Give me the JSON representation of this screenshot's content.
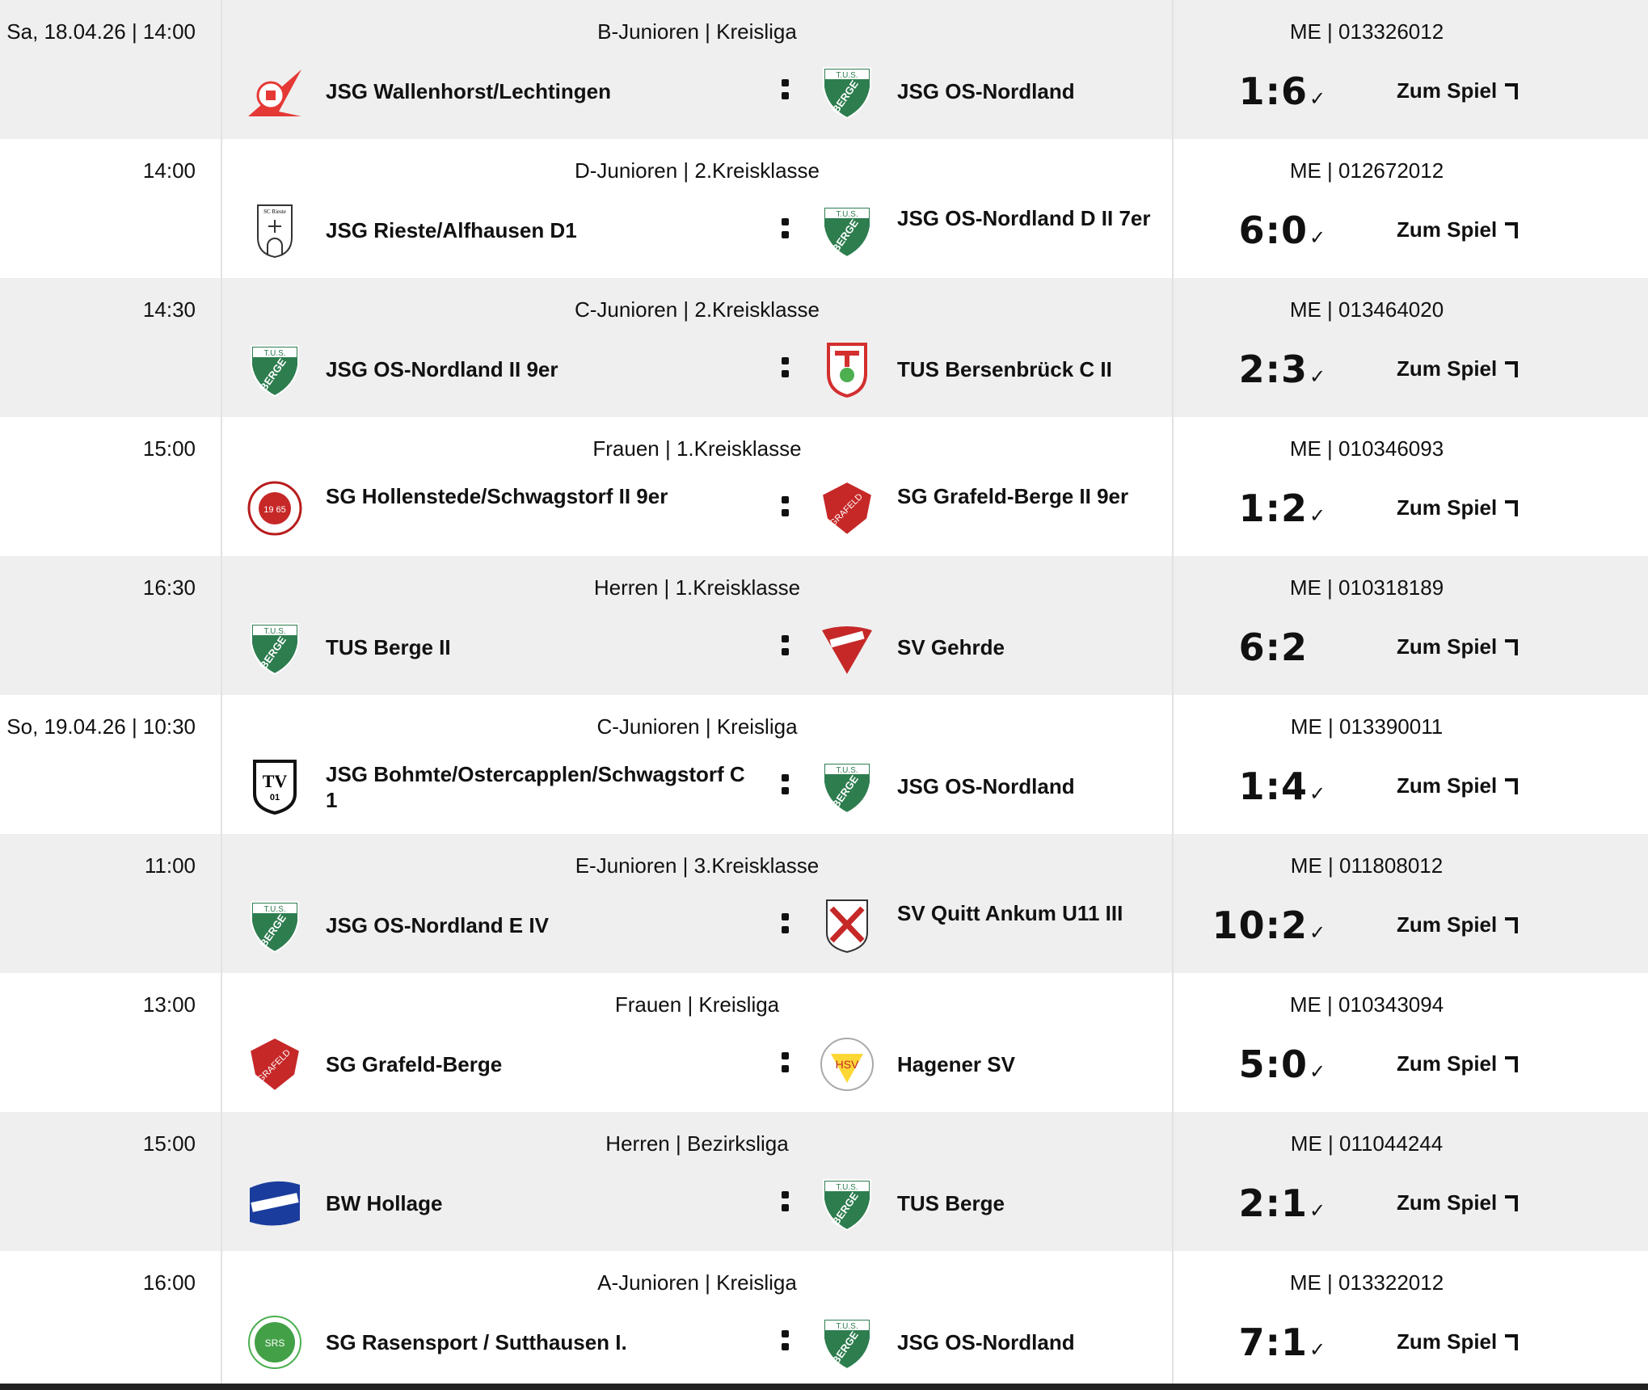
{
  "link_label": "Zum Spiel",
  "colors": {
    "row_alt": "#efefef",
    "tus_green": "#2e7d4f",
    "red": "#d32f2f"
  },
  "matches": [
    {
      "date": "Sa, 18.04.26 | 14:00",
      "league": "B-Junioren | Kreisliga",
      "me": "ME | 013326012",
      "home": "JSG Wallenhorst/Lechtingen",
      "home_logo": "red-flag",
      "away": "JSG OS-Nordland",
      "away_logo": "tus-berge",
      "score": "1:6",
      "confirmed": true
    },
    {
      "date": "14:00",
      "league": "D-Junioren | 2.Kreisklasse",
      "me": "ME | 012672012",
      "home": "JSG Rieste/Alfhausen D1",
      "home_logo": "white-shield",
      "away": "JSG OS-Nordland D II 7er",
      "away_logo": "tus-berge",
      "score": "6:0",
      "confirmed": true
    },
    {
      "date": "14:30",
      "league": "C-Junioren | 2.Kreisklasse",
      "me": "ME | 013464020",
      "home": "JSG OS-Nordland II 9er",
      "home_logo": "tus-berge",
      "away": "TUS Bersenbrück C II",
      "away_logo": "red-white-shield",
      "score": "2:3",
      "confirmed": true
    },
    {
      "date": "15:00",
      "league": "Frauen | 1.Kreisklasse",
      "me": "ME | 010346093",
      "home": "SG Hollenstede/Schwagstorf II 9er",
      "home_logo": "red-circle",
      "away": "SG Grafeld-Berge II 9er",
      "away_logo": "red-shield",
      "score": "1:2",
      "confirmed": true
    },
    {
      "date": "16:30",
      "league": "Herren | 1.Kreisklasse",
      "me": "ME | 010318189",
      "home": "TUS Berge II",
      "home_logo": "tus-berge",
      "away": "SV Gehrde",
      "away_logo": "red-heart",
      "score": "6:2",
      "confirmed": false
    },
    {
      "date": "So, 19.04.26 | 10:30",
      "league": "C-Junioren | Kreisliga",
      "me": "ME | 013390011",
      "home": "JSG Bohmte/Ostercapplen/Schwagstorf C 1",
      "home_logo": "black-shield",
      "away": "JSG OS-Nordland",
      "away_logo": "tus-berge",
      "score": "1:4",
      "confirmed": true
    },
    {
      "date": "11:00",
      "league": "E-Junioren | 3.Kreisklasse",
      "me": "ME | 011808012",
      "home": "JSG OS-Nordland E IV",
      "home_logo": "tus-berge",
      "away": "SV Quitt Ankum U11 III",
      "away_logo": "cross-shield",
      "score": "10:2",
      "confirmed": true
    },
    {
      "date": "13:00",
      "league": "Frauen | Kreisliga",
      "me": "ME | 010343094",
      "home": "SG Grafeld-Berge",
      "home_logo": "red-shield",
      "away": "Hagener SV",
      "away_logo": "yellow-circle",
      "score": "5:0",
      "confirmed": true
    },
    {
      "date": "15:00",
      "league": "Herren | Bezirksliga",
      "me": "ME | 011044244",
      "home": "BW Hollage",
      "home_logo": "blue-badge",
      "away": "TUS Berge",
      "away_logo": "tus-berge",
      "score": "2:1",
      "confirmed": true
    },
    {
      "date": "16:00",
      "league": "A-Junioren | Kreisliga",
      "me": "ME | 013322012",
      "home": "SG Rasensport / Sutthausen I.",
      "home_logo": "green-circle",
      "away": "JSG OS-Nordland",
      "away_logo": "tus-berge",
      "score": "7:1",
      "confirmed": true
    }
  ]
}
